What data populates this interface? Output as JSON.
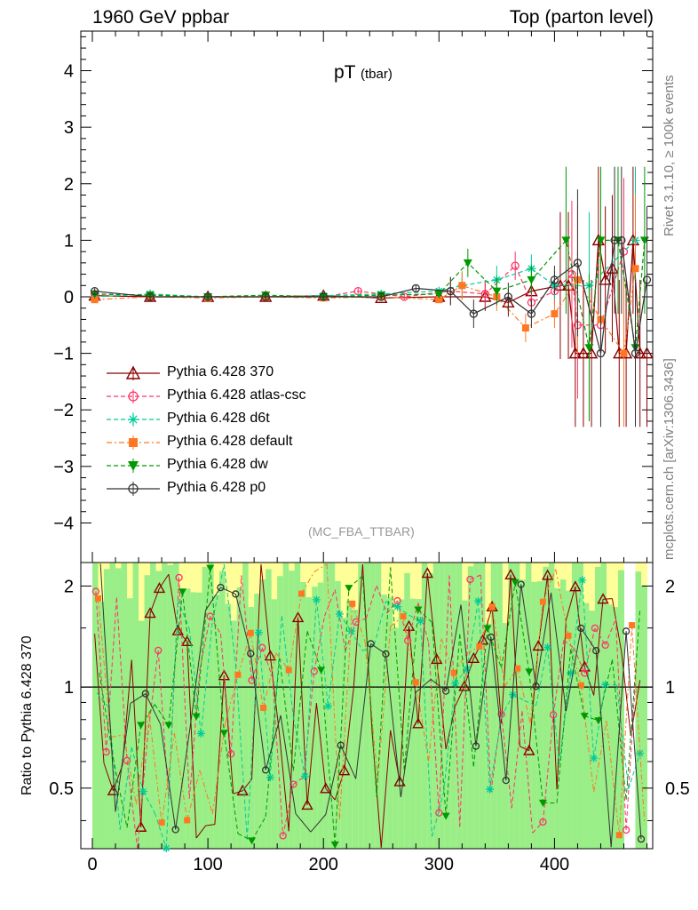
{
  "header": {
    "left": "1960 GeV ppbar",
    "right": "Top (parton level)"
  },
  "side_text": {
    "rivet": "Rivet 3.1.10, ≥ 100k events",
    "mcplots": "mcplots.cern.ch [arXiv:1306.3436]"
  },
  "plot": {
    "title_main": "pT",
    "title_sub": "(tbar)",
    "analysis": "(MC_FBA_TTBAR)"
  },
  "ratio": {
    "ylabel": "Ratio to Pythia 6.428 370"
  },
  "chart_data": {
    "type": "scatter",
    "main": {
      "xlim": [
        -10,
        485
      ],
      "ylim": [
        -4.7,
        4.7
      ],
      "yticks": [
        -4,
        -3,
        -2,
        -1,
        0,
        1,
        2,
        3,
        4
      ],
      "ytick_labels": [
        "−4",
        "−3",
        "−2",
        "−1",
        "0",
        "1",
        "2",
        "3",
        "4"
      ]
    },
    "ratio_panel": {
      "ylim": [
        0.33,
        2.35
      ],
      "log_y": true,
      "yticks": [
        0.5,
        1,
        2
      ],
      "ytick_labels": [
        "0.5",
        "1",
        "2"
      ],
      "xticks": [
        0,
        100,
        200,
        300,
        400
      ],
      "xtick_labels": [
        "0",
        "100",
        "200",
        "300",
        "400"
      ]
    },
    "series": [
      {
        "name": "Pythia 6.428 370",
        "color": "#8b0000",
        "marker": "triangle-open",
        "dash": "solid",
        "points": [
          [
            2,
            0.02
          ],
          [
            50,
            0.0
          ],
          [
            100,
            0.0
          ],
          [
            150,
            0.0
          ],
          [
            200,
            0.02
          ],
          [
            250,
            -0.02
          ],
          [
            300,
            0.0
          ],
          [
            340,
            0.0
          ],
          [
            360,
            -0.1
          ],
          [
            380,
            0.1
          ],
          [
            405,
            0.2
          ],
          [
            412,
            0.2
          ],
          [
            418,
            -1.0
          ],
          [
            425,
            -1.0
          ],
          [
            432,
            -1.0
          ],
          [
            438,
            1.0
          ],
          [
            444,
            0.3
          ],
          [
            450,
            0.5
          ],
          [
            456,
            -1.0
          ],
          [
            462,
            -1.0
          ],
          [
            468,
            1.0
          ],
          [
            474,
            -1.0
          ],
          [
            480,
            -1.0
          ]
        ]
      },
      {
        "name": "Pythia 6.428 atlas-csc",
        "color": "#ff3366",
        "marker": "circle-open",
        "dash": "dashed",
        "points": [
          [
            2,
            0.05
          ],
          [
            50,
            0.03
          ],
          [
            100,
            0.0
          ],
          [
            150,
            0.0
          ],
          [
            200,
            0.0
          ],
          [
            230,
            0.1
          ],
          [
            270,
            0.0
          ],
          [
            310,
            0.1
          ],
          [
            340,
            0.05
          ],
          [
            366,
            0.55
          ],
          [
            380,
            -0.1
          ],
          [
            400,
            0.1
          ],
          [
            415,
            0.4
          ],
          [
            420,
            -0.5
          ],
          [
            440,
            -0.5
          ],
          [
            460,
            0.8
          ]
        ]
      },
      {
        "name": "Pythia 6.428 d6t",
        "color": "#00cc99",
        "marker": "asterisk",
        "dash": "dashed",
        "points": [
          [
            2,
            0.0
          ],
          [
            50,
            0.05
          ],
          [
            100,
            0.0
          ],
          [
            150,
            0.0
          ],
          [
            200,
            0.02
          ],
          [
            250,
            0.05
          ],
          [
            300,
            0.1
          ],
          [
            320,
            0.2
          ],
          [
            350,
            0.3
          ],
          [
            380,
            0.5
          ],
          [
            400,
            0.2
          ],
          [
            430,
            0.2
          ],
          [
            470,
            1.0
          ]
        ]
      },
      {
        "name": "Pythia 6.428 default",
        "color": "#ff7722",
        "marker": "square-filled",
        "dash": "dashdot",
        "points": [
          [
            2,
            -0.05
          ],
          [
            50,
            0.0
          ],
          [
            100,
            -0.02
          ],
          [
            150,
            0.0
          ],
          [
            200,
            -0.02
          ],
          [
            250,
            0.0
          ],
          [
            300,
            -0.05
          ],
          [
            320,
            0.2
          ],
          [
            350,
            0.0
          ],
          [
            375,
            -0.55
          ],
          [
            400,
            -0.3
          ],
          [
            420,
            0.3
          ],
          [
            440,
            -0.4
          ],
          [
            460,
            -1.0
          ],
          [
            470,
            0.5
          ]
        ]
      },
      {
        "name": "Pythia 6.428 dw",
        "color": "#009900",
        "marker": "triangle-down-filled",
        "dash": "dashed",
        "points": [
          [
            2,
            0.05
          ],
          [
            50,
            0.03
          ],
          [
            100,
            0.0
          ],
          [
            150,
            0.03
          ],
          [
            200,
            0.0
          ],
          [
            250,
            0.03
          ],
          [
            300,
            0.05
          ],
          [
            325,
            0.6
          ],
          [
            350,
            0.1
          ],
          [
            380,
            0.3
          ],
          [
            410,
            1.0
          ],
          [
            430,
            -0.9
          ],
          [
            440,
            1.0
          ],
          [
            455,
            1.0
          ],
          [
            470,
            -0.9
          ],
          [
            478,
            1.0
          ]
        ]
      },
      {
        "name": "Pythia 6.428 p0",
        "color": "#333333",
        "marker": "circle-open",
        "dash": "solid",
        "points": [
          [
            2,
            0.1
          ],
          [
            50,
            0.0
          ],
          [
            100,
            0.0
          ],
          [
            150,
            0.0
          ],
          [
            200,
            0.0
          ],
          [
            250,
            0.0
          ],
          [
            280,
            0.15
          ],
          [
            310,
            0.1
          ],
          [
            330,
            -0.3
          ],
          [
            360,
            0.0
          ],
          [
            380,
            -0.3
          ],
          [
            400,
            0.3
          ],
          [
            420,
            0.6
          ],
          [
            440,
            -1.0
          ],
          [
            452,
            1.0
          ],
          [
            458,
            1.0
          ],
          [
            470,
            -1.0
          ],
          [
            480,
            0.3
          ]
        ]
      }
    ]
  }
}
